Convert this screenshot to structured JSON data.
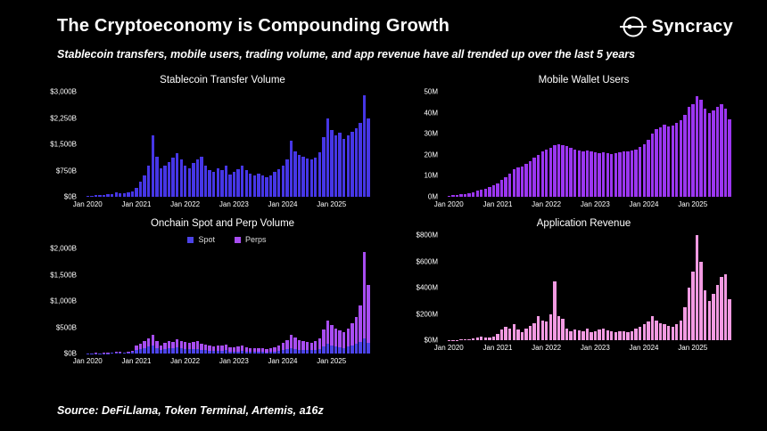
{
  "header": {
    "title": "The Cryptoeconomy is Compounding Growth",
    "subtitle": "Stablecoin transfers, mobile users, trading volume, and app revenue have all trended up over the last 5 years",
    "logo_text": "Syncracy"
  },
  "footer": {
    "source": "Source: DeFiLlama, Token Terminal, Artemis, a16z"
  },
  "chart_data": [
    {
      "type": "bar",
      "title": "Stablecoin Transfer Volume",
      "unit": "$B",
      "color": "#4636e6",
      "ylim": [
        0,
        3000
      ],
      "y_ticks": [
        {
          "v": 0,
          "label": "$0B"
        },
        {
          "v": 750,
          "label": "$750B"
        },
        {
          "v": 1500,
          "label": "$1,500B"
        },
        {
          "v": 2250,
          "label": "$2,250B"
        },
        {
          "v": 3000,
          "label": "$3,000B"
        }
      ],
      "x_ticks": [
        {
          "i": 0,
          "label": "Jan 2020"
        },
        {
          "i": 12,
          "label": "Jan 2021"
        },
        {
          "i": 24,
          "label": "Jan 2022"
        },
        {
          "i": 36,
          "label": "Jan 2023"
        },
        {
          "i": 48,
          "label": "Jan 2024"
        },
        {
          "i": 60,
          "label": "Jan 2025"
        }
      ],
      "x_range": "Monthly, Jan 2020 - Oct 2025",
      "values": [
        30,
        35,
        60,
        45,
        50,
        70,
        85,
        120,
        110,
        100,
        125,
        160,
        260,
        420,
        620,
        900,
        1750,
        1150,
        820,
        900,
        1000,
        1120,
        1250,
        1080,
        900,
        820,
        960,
        1060,
        1150,
        880,
        760,
        700,
        810,
        760,
        900,
        640,
        700,
        800,
        900,
        760,
        660,
        600,
        650,
        610,
        560,
        610,
        700,
        800,
        900,
        1080,
        1600,
        1300,
        1200,
        1150,
        1100,
        1060,
        1120,
        1260,
        1700,
        2250,
        1900,
        1760,
        1820,
        1650,
        1750,
        1850,
        1950,
        2100,
        2900,
        2250
      ]
    },
    {
      "type": "bar",
      "title": "Mobile Wallet Users",
      "unit": "M",
      "color": "#9b36f0",
      "ylim": [
        0,
        50
      ],
      "y_ticks": [
        {
          "v": 0,
          "label": "0M"
        },
        {
          "v": 10,
          "label": "10M"
        },
        {
          "v": 20,
          "label": "20M"
        },
        {
          "v": 30,
          "label": "30M"
        },
        {
          "v": 40,
          "label": "40M"
        },
        {
          "v": 50,
          "label": "50M"
        }
      ],
      "x_ticks": [
        {
          "i": 0,
          "label": "Jan 2020"
        },
        {
          "i": 12,
          "label": "Jan 2021"
        },
        {
          "i": 24,
          "label": "Jan 2022"
        },
        {
          "i": 36,
          "label": "Jan 2023"
        },
        {
          "i": 48,
          "label": "Jan 2024"
        },
        {
          "i": 60,
          "label": "Jan 2025"
        }
      ],
      "x_range": "Monthly, Jan 2020 - Oct 2025",
      "values": [
        0.5,
        0.7,
        0.9,
        1.1,
        1.4,
        1.8,
        2.2,
        2.8,
        3.3,
        3.9,
        4.6,
        5.6,
        6.5,
        8,
        9.5,
        11,
        13,
        14,
        14.5,
        15.5,
        17,
        18.5,
        20,
        21.5,
        22.5,
        23.5,
        24.5,
        25,
        24.5,
        24,
        23.2,
        22.6,
        22.2,
        21.8,
        22,
        21.5,
        21,
        20.8,
        21,
        20.6,
        20.3,
        20.6,
        21,
        21.5,
        21.8,
        22,
        22.6,
        23.6,
        25,
        27,
        30,
        32,
        33,
        34.5,
        33.5,
        34,
        35,
        36.5,
        39,
        43,
        44,
        48,
        46,
        42,
        40,
        41,
        43,
        44,
        42,
        37
      ]
    },
    {
      "type": "bar",
      "stacked": true,
      "title": "Onchain Spot and Perp Volume",
      "unit": "$B",
      "ylim": [
        0,
        2000
      ],
      "y_ticks": [
        {
          "v": 0,
          "label": "$0B"
        },
        {
          "v": 500,
          "label": "$500B"
        },
        {
          "v": 1000,
          "label": "$1,000B"
        },
        {
          "v": 1500,
          "label": "$1,500B"
        },
        {
          "v": 2000,
          "label": "$2,000B"
        }
      ],
      "x_ticks": [
        {
          "i": 0,
          "label": "Jan 2020"
        },
        {
          "i": 12,
          "label": "Jan 2021"
        },
        {
          "i": 24,
          "label": "Jan 2022"
        },
        {
          "i": 36,
          "label": "Jan 2023"
        },
        {
          "i": 48,
          "label": "Jan 2024"
        },
        {
          "i": 60,
          "label": "Jan 2025"
        }
      ],
      "x_range": "Monthly, Jan 2020 - Oct 2025",
      "series": [
        {
          "name": "Spot",
          "color": "#4c43e8",
          "values": [
            4,
            4,
            6,
            5,
            6,
            8,
            12,
            18,
            15,
            12,
            18,
            28,
            70,
            90,
            110,
            130,
            160,
            100,
            70,
            90,
            100,
            95,
            115,
            100,
            90,
            80,
            85,
            90,
            70,
            60,
            55,
            50,
            55,
            50,
            60,
            40,
            35,
            40,
            45,
            35,
            30,
            30,
            32,
            28,
            25,
            28,
            35,
            45,
            60,
            80,
            110,
            90,
            75,
            70,
            65,
            62,
            70,
            85,
            130,
            180,
            150,
            130,
            120,
            110,
            130,
            150,
            180,
            220,
            280,
            200
          ]
        },
        {
          "name": "Perps",
          "color": "#a84df2",
          "values": [
            2,
            2,
            3,
            3,
            4,
            6,
            10,
            14,
            12,
            10,
            14,
            22,
            80,
            100,
            130,
            160,
            200,
            130,
            90,
            110,
            130,
            120,
            150,
            130,
            130,
            120,
            130,
            140,
            120,
            110,
            100,
            90,
            100,
            95,
            110,
            80,
            80,
            90,
            100,
            85,
            75,
            70,
            75,
            68,
            62,
            70,
            85,
            105,
            140,
            180,
            250,
            210,
            180,
            170,
            160,
            150,
            170,
            200,
            320,
            450,
            400,
            350,
            320,
            300,
            350,
            420,
            520,
            700,
            1650,
            1100
          ]
        }
      ]
    },
    {
      "type": "bar",
      "title": "Application Revenue",
      "unit": "$M",
      "color": "#f29ae2",
      "ylim": [
        0,
        800
      ],
      "y_ticks": [
        {
          "v": 0,
          "label": "$0M"
        },
        {
          "v": 200,
          "label": "$200M"
        },
        {
          "v": 400,
          "label": "$400M"
        },
        {
          "v": 600,
          "label": "$600M"
        },
        {
          "v": 800,
          "label": "$800M"
        }
      ],
      "x_ticks": [
        {
          "i": 0,
          "label": "Jan 2020"
        },
        {
          "i": 12,
          "label": "Jan 2021"
        },
        {
          "i": 24,
          "label": "Jan 2022"
        },
        {
          "i": 36,
          "label": "Jan 2023"
        },
        {
          "i": 48,
          "label": "Jan 2024"
        },
        {
          "i": 60,
          "label": "Jan 2025"
        }
      ],
      "x_range": "Monthly, Jan 2020 - Oct 2025",
      "values": [
        2,
        3,
        3,
        4,
        5,
        8,
        12,
        18,
        25,
        20,
        22,
        30,
        50,
        80,
        100,
        90,
        120,
        80,
        60,
        90,
        110,
        130,
        180,
        150,
        140,
        200,
        450,
        180,
        160,
        90,
        70,
        80,
        75,
        70,
        90,
        60,
        70,
        80,
        90,
        75,
        65,
        60,
        70,
        65,
        60,
        70,
        85,
        100,
        120,
        140,
        180,
        150,
        130,
        120,
        110,
        105,
        120,
        150,
        250,
        400,
        520,
        800,
        600,
        380,
        300,
        350,
        420,
        480,
        500,
        310
      ]
    }
  ]
}
